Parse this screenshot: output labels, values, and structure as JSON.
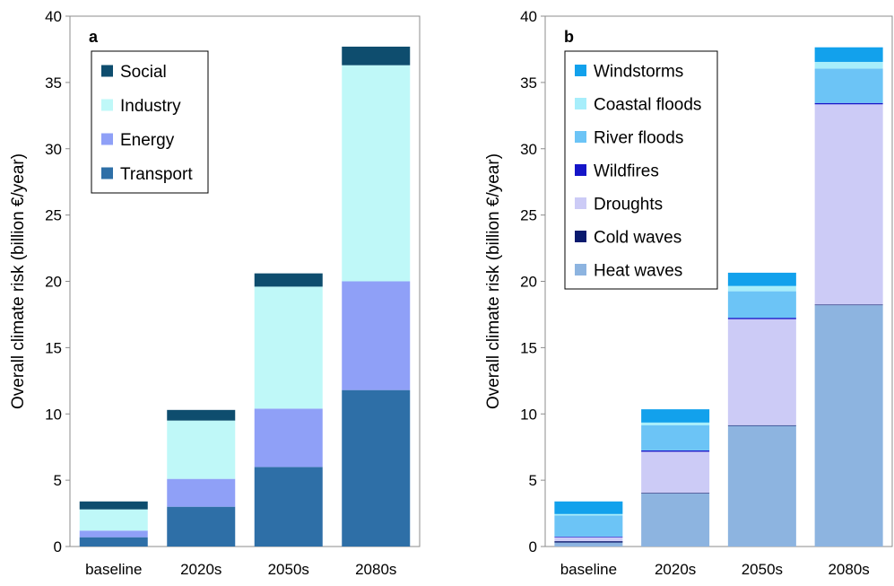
{
  "chart_data": [
    {
      "type": "bar",
      "stacked": true,
      "panel_label": "a",
      "ylabel": "Overall climate risk (billion €/year)",
      "ylim": [
        0,
        40
      ],
      "yticks": [
        0,
        5,
        10,
        15,
        20,
        25,
        30,
        35,
        40
      ],
      "categories": [
        "baseline",
        "2020s",
        "2050s",
        "2080s"
      ],
      "legend_position": "top-left",
      "legend_order": [
        "Social",
        "Industry",
        "Energy",
        "Transport"
      ],
      "series": [
        {
          "name": "Transport",
          "color": "#2e6fa7",
          "values": [
            0.7,
            3.0,
            6.0,
            11.8
          ]
        },
        {
          "name": "Energy",
          "color": "#8fa0f7",
          "values": [
            0.5,
            2.1,
            4.4,
            8.2
          ]
        },
        {
          "name": "Industry",
          "color": "#bff8f8",
          "values": [
            1.6,
            4.4,
            9.2,
            16.3
          ]
        },
        {
          "name": "Social",
          "color": "#0e4d6e",
          "values": [
            0.6,
            0.8,
            1.0,
            1.4
          ]
        }
      ]
    },
    {
      "type": "bar",
      "stacked": true,
      "panel_label": "b",
      "ylabel": "Overall climate risk (billion €/year)",
      "ylim": [
        0,
        40
      ],
      "yticks": [
        0,
        5,
        10,
        15,
        20,
        25,
        30,
        35,
        40
      ],
      "categories": [
        "baseline",
        "2020s",
        "2050s",
        "2080s"
      ],
      "legend_position": "top-left",
      "legend_order": [
        "Windstorms",
        "Coastal floods",
        "River floods",
        "Wildfires",
        "Droughts",
        "Cold waves",
        "Heat waves"
      ],
      "series": [
        {
          "name": "Heat waves",
          "color": "#8db4e0",
          "values": [
            0.3,
            4.0,
            9.1,
            18.2
          ]
        },
        {
          "name": "Cold waves",
          "color": "#0a1a6e",
          "values": [
            0.1,
            0.05,
            0.05,
            0.05
          ]
        },
        {
          "name": "Droughts",
          "color": "#cccbf6",
          "values": [
            0.3,
            3.1,
            8.0,
            15.1
          ]
        },
        {
          "name": "Wildfires",
          "color": "#1515c8",
          "values": [
            0.05,
            0.1,
            0.1,
            0.1
          ]
        },
        {
          "name": "River floods",
          "color": "#6cc4f6",
          "values": [
            1.6,
            1.9,
            2.0,
            2.6
          ]
        },
        {
          "name": "Coastal floods",
          "color": "#a7eefb",
          "values": [
            0.1,
            0.2,
            0.4,
            0.5
          ]
        },
        {
          "name": "Windstorms",
          "color": "#12a1ec",
          "values": [
            0.95,
            1.0,
            1.0,
            1.1
          ]
        }
      ]
    }
  ]
}
